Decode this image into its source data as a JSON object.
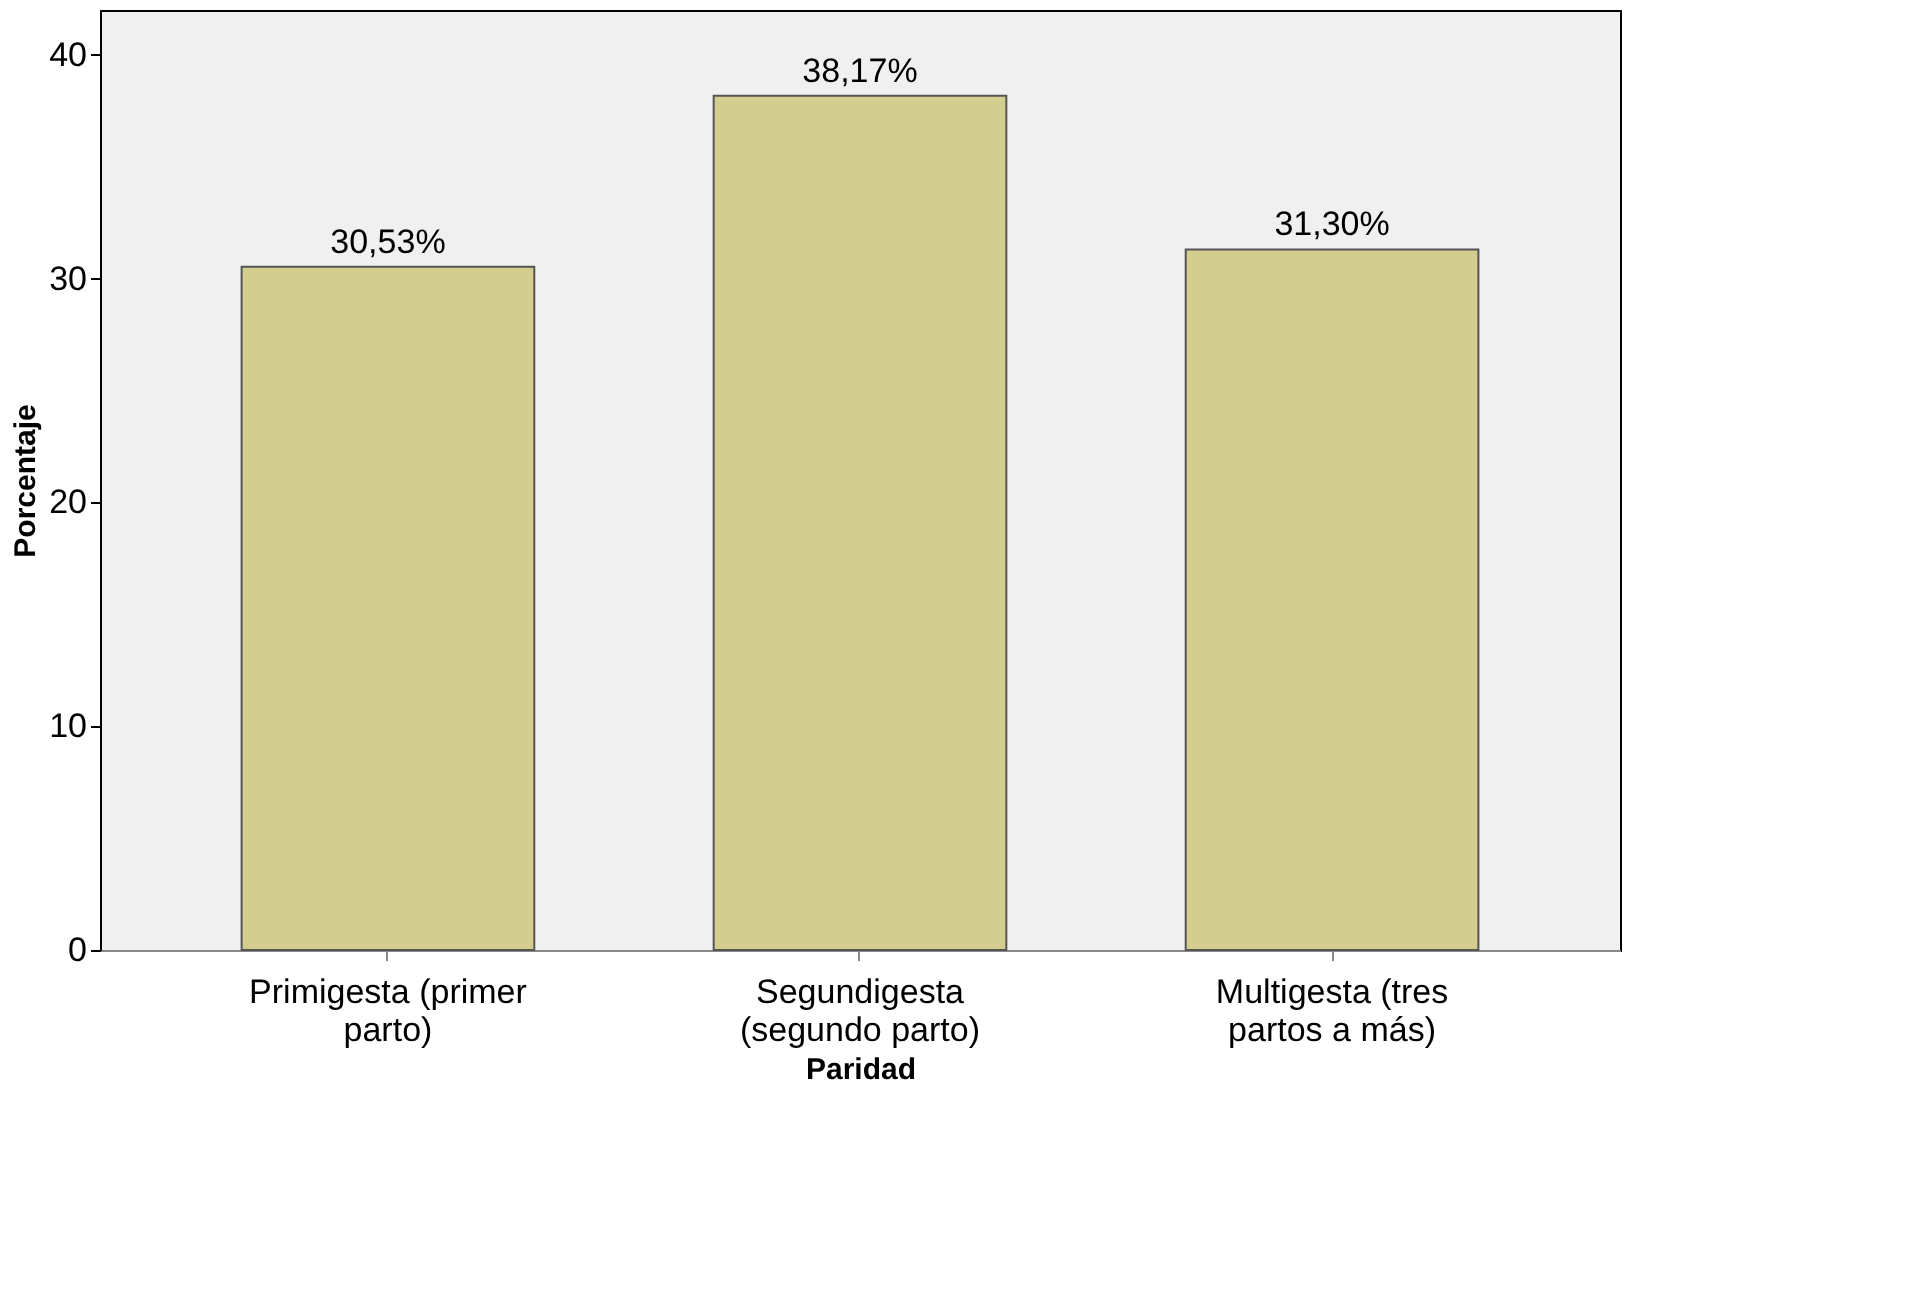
{
  "chart_data": {
    "type": "bar",
    "xlabel": "Paridad",
    "ylabel": "Porcentaje",
    "categories": [
      "Primigesta (primer parto)",
      "Segundigesta (segundo parto)",
      "Multigesta (tres partos a más)"
    ],
    "values": [
      30.53,
      38.17,
      31.3
    ],
    "value_labels": [
      "30,53%",
      "38,17%",
      "31,30%"
    ],
    "color": "#d3cd8f",
    "ylim": [
      0,
      42
    ],
    "yticks": [
      0,
      10,
      20,
      30,
      40
    ],
    "grid": false
  }
}
